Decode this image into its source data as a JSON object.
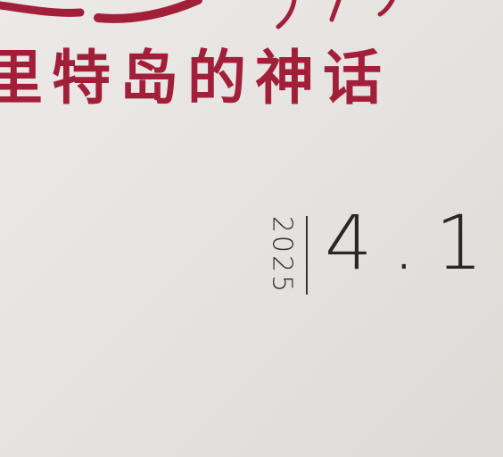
{
  "poster": {
    "subtitle": "里特岛的神话",
    "year": "2025",
    "date": "4.1"
  },
  "colors": {
    "background": "#e8e5e2",
    "title_red": "#a21f3a",
    "text_dark": "#2b2727"
  }
}
